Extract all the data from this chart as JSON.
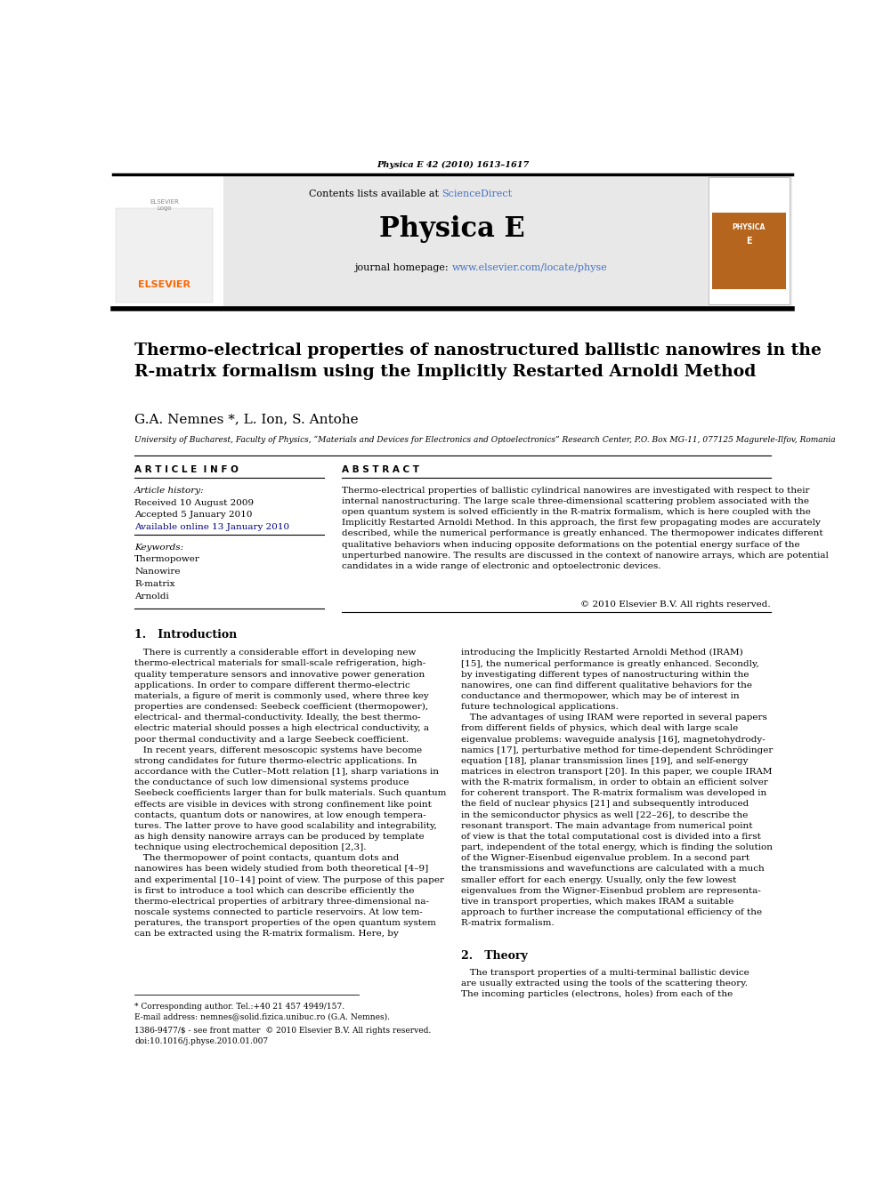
{
  "page_width": 9.92,
  "page_height": 13.23,
  "bg_color": "#ffffff",
  "header_journal": "Physica E 42 (2010) 1613–1617",
  "journal_name": "Physica E",
  "contents_line": "Contents lists available at ScienceDirect",
  "sciencedirect_color": "#4472C4",
  "journal_homepage": "journal homepage: www.elsevier.com/locate/physe",
  "homepage_color": "#4472C4",
  "header_bg": "#e8e8e8",
  "title": "Thermo-electrical properties of nanostructured ballistic nanowires in the\nR-matrix formalism using the Implicitly Restarted Arnoldi Method",
  "authors": "G.A. Nemnes *, L. Ion, S. Antohe",
  "affiliation": "University of Bucharest, Faculty of Physics, “Materials and Devices for Electronics and Optoelectronics” Research Center, P.O. Box MG-11, 077125 Magurele-Ilfov, Romania",
  "article_info_header": "A R T I C L E  I N F O",
  "abstract_header": "A B S T R A C T",
  "article_history_label": "Article history:",
  "received": "Received 10 August 2009",
  "accepted": "Accepted 5 January 2010",
  "available": "Available online 13 January 2010",
  "keywords_label": "Keywords:",
  "keywords": [
    "Thermopower",
    "Nanowire",
    "R-matrix",
    "Arnoldi"
  ],
  "abstract_text": "Thermo-electrical properties of ballistic cylindrical nanowires are investigated with respect to their\ninternal nanostructuring. The large scale three-dimensional scattering problem associated with the\nopen quantum system is solved efficiently in the R-matrix formalism, which is here coupled with the\nImplicitly Restarted Arnoldi Method. In this approach, the first few propagating modes are accurately\ndescribed, while the numerical performance is greatly enhanced. The thermopower indicates different\nqualitative behaviors when inducing opposite deformations on the potential energy surface of the\nunperturbed nanowire. The results are discussed in the context of nanowire arrays, which are potential\ncandidates in a wide range of electronic and optoelectronic devices.",
  "copyright": "© 2010 Elsevier B.V. All rights reserved.",
  "section1_title": "1.   Introduction",
  "intro_col1": "   There is currently a considerable effort in developing new\nthermo-electrical materials for small-scale refrigeration, high-\nquality temperature sensors and innovative power generation\napplications. In order to compare different thermo-electric\nmaterials, a figure of merit is commonly used, where three key\nproperties are condensed: Seebeck coefficient (thermopower),\nelectrical- and thermal-conductivity. Ideally, the best thermo-\nelectric material should posses a high electrical conductivity, a\npoor thermal conductivity and a large Seebeck coefficient.\n   In recent years, different mesoscopic systems have become\nstrong candidates for future thermo-electric applications. In\naccordance with the Cutler–Mott relation [1], sharp variations in\nthe conductance of such low dimensional systems produce\nSeebeck coefficients larger than for bulk materials. Such quantum\neffects are visible in devices with strong confinement like point\ncontacts, quantum dots or nanowires, at low enough tempera-\ntures. The latter prove to have good scalability and integrability,\nas high density nanowire arrays can be produced by template\ntechnique using electrochemical deposition [2,3].\n   The thermopower of point contacts, quantum dots and\nnanowires has been widely studied from both theoretical [4–9]\nand experimental [10–14] point of view. The purpose of this paper\nis first to introduce a tool which can describe efficiently the\nthermo-electrical properties of arbitrary three-dimensional na-\nnoscale systems connected to particle reservoirs. At low tem-\nperatures, the transport properties of the open quantum system\ncan be extracted using the R-matrix formalism. Here, by",
  "intro_col2": "introducing the Implicitly Restarted Arnoldi Method (IRAM)\n[15], the numerical performance is greatly enhanced. Secondly,\nby investigating different types of nanostructuring within the\nnanowires, one can find different qualitative behaviors for the\nconductance and thermopower, which may be of interest in\nfuture technological applications.\n   The advantages of using IRAM were reported in several papers\nfrom different fields of physics, which deal with large scale\neigenvalue problems: waveguide analysis [16], magnetohydrody-\nnamics [17], perturbative method for time-dependent Schrödinger\nequation [18], planar transmission lines [19], and self-energy\nmatrices in electron transport [20]. In this paper, we couple IRAM\nwith the R-matrix formalism, in order to obtain an efficient solver\nfor coherent transport. The R-matrix formalism was developed in\nthe field of nuclear physics [21] and subsequently introduced\nin the semiconductor physics as well [22–26], to describe the\nresonant transport. The main advantage from numerical point\nof view is that the total computational cost is divided into a first\npart, independent of the total energy, which is finding the solution\nof the Wigner-Eisenbud eigenvalue problem. In a second part\nthe transmissions and wavefunctions are calculated with a much\nsmaller effort for each energy. Usually, only the few lowest\neigenvalues from the Wigner-Eisenbud problem are representa-\ntive in transport properties, which makes IRAM a suitable\napproach to further increase the computational efficiency of the\nR-matrix formalism.",
  "section2_title": "2.   Theory",
  "theory_text": "   The transport properties of a multi-terminal ballistic device\nare usually extracted using the tools of the scattering theory.\nThe incoming particles (electrons, holes) from each of the",
  "footnote1": "* Corresponding author. Tel.:+40 21 457 4949/157.",
  "footnote2": "E-mail address: nemnes@solid.fizica.unibuc.ro (G.A. Nemnes).",
  "footer1": "1386-9477/$ - see front matter  © 2010 Elsevier B.V. All rights reserved.",
  "footer2": "doi:10.1016/j.physe.2010.01.007"
}
